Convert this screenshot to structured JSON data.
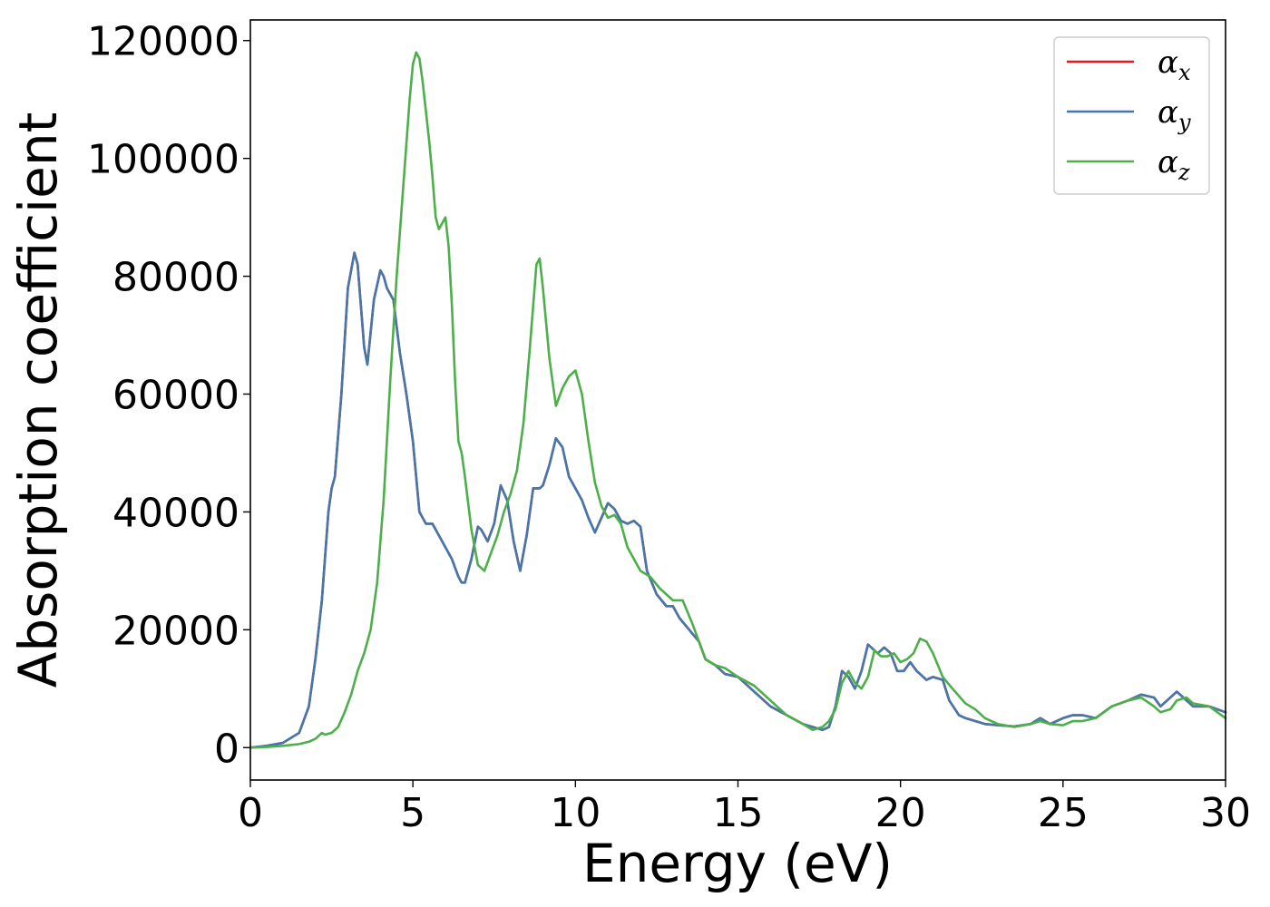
{
  "chart_data": {
    "type": "line",
    "xlabel": "Energy (eV)",
    "ylabel": "Absorption coefficient",
    "xlim": [
      0,
      30
    ],
    "ylim": [
      -5500,
      123500
    ],
    "xticks": [
      0,
      5,
      10,
      15,
      20,
      25,
      30
    ],
    "xtick_labels": [
      "0",
      "5",
      "10",
      "15",
      "20",
      "25",
      "30"
    ],
    "yticks": [
      0,
      20000,
      40000,
      60000,
      80000,
      100000,
      120000
    ],
    "ytick_labels": [
      "0",
      "20000",
      "40000",
      "60000",
      "80000",
      "100000",
      "120000"
    ],
    "grid": false,
    "legend_position": "top-right",
    "series": [
      {
        "name": "α_x",
        "name_base": "α",
        "name_sub": "x",
        "color": "#e41a1c",
        "x": [
          0,
          0.5,
          1.0,
          1.5,
          1.8,
          2.0,
          2.2,
          2.4,
          2.5,
          2.6,
          2.8,
          3.0,
          3.2,
          3.3,
          3.5,
          3.6,
          3.8,
          4.0,
          4.1,
          4.2,
          4.4,
          4.6,
          4.8,
          5.0,
          5.2,
          5.4,
          5.6,
          5.8,
          6.0,
          6.2,
          6.4,
          6.5,
          6.6,
          6.8,
          7.0,
          7.1,
          7.3,
          7.5,
          7.7,
          7.9,
          8.1,
          8.3,
          8.5,
          8.7,
          8.9,
          9.0,
          9.2,
          9.4,
          9.6,
          9.8,
          10.0,
          10.2,
          10.4,
          10.6,
          10.8,
          11.0,
          11.2,
          11.4,
          11.6,
          11.8,
          12.0,
          12.2,
          12.5,
          12.8,
          13.0,
          13.2,
          13.5,
          13.8,
          14.0,
          14.3,
          14.6,
          15.0,
          15.5,
          16.0,
          16.5,
          17.0,
          17.3,
          17.6,
          17.8,
          18.0,
          18.2,
          18.4,
          18.6,
          18.8,
          19.0,
          19.1,
          19.3,
          19.5,
          19.7,
          19.9,
          20.1,
          20.3,
          20.5,
          20.8,
          21.0,
          21.3,
          21.5,
          21.8,
          22.0,
          22.3,
          22.6,
          23.0,
          23.5,
          24.0,
          24.3,
          24.6,
          25.0,
          25.3,
          25.6,
          26.0,
          26.5,
          27.0,
          27.4,
          27.8,
          28.0,
          28.3,
          28.5,
          28.8,
          29.0,
          29.5,
          30.0
        ],
        "y": [
          0,
          300,
          800,
          2500,
          7000,
          15000,
          25000,
          40000,
          44000,
          46000,
          60000,
          78000,
          84000,
          82000,
          68000,
          65000,
          76000,
          81000,
          80000,
          78000,
          76000,
          67000,
          60000,
          52000,
          40000,
          38000,
          38000,
          36000,
          34000,
          32000,
          29000,
          28000,
          28000,
          32000,
          37500,
          37000,
          35000,
          38000,
          44500,
          42000,
          35000,
          30000,
          36000,
          44000,
          44000,
          44500,
          48000,
          52500,
          51000,
          46000,
          44000,
          42000,
          39000,
          36500,
          39000,
          41500,
          40500,
          38500,
          38000,
          38500,
          37500,
          30000,
          26000,
          24000,
          24000,
          22000,
          20000,
          18000,
          15000,
          14000,
          12500,
          12000,
          9500,
          7000,
          5500,
          4000,
          3500,
          3000,
          3500,
          7000,
          13000,
          12000,
          10000,
          13000,
          17500,
          17000,
          16000,
          17000,
          16000,
          13000,
          13000,
          14500,
          13000,
          11500,
          12000,
          11500,
          8000,
          5500,
          5000,
          4500,
          4000,
          3800,
          3600,
          4000,
          5000,
          4000,
          5000,
          5500,
          5500,
          5000,
          7000,
          8000,
          9000,
          8500,
          7000,
          8500,
          9500,
          8000,
          7000,
          7000,
          6000
        ]
      },
      {
        "name": "α_y",
        "name_base": "α",
        "name_sub": "y",
        "color": "#4477aa",
        "x": [
          0,
          0.5,
          1.0,
          1.5,
          1.8,
          2.0,
          2.2,
          2.4,
          2.5,
          2.6,
          2.8,
          3.0,
          3.2,
          3.3,
          3.5,
          3.6,
          3.8,
          4.0,
          4.1,
          4.2,
          4.4,
          4.6,
          4.8,
          5.0,
          5.2,
          5.4,
          5.6,
          5.8,
          6.0,
          6.2,
          6.4,
          6.5,
          6.6,
          6.8,
          7.0,
          7.1,
          7.3,
          7.5,
          7.7,
          7.9,
          8.1,
          8.3,
          8.5,
          8.7,
          8.9,
          9.0,
          9.2,
          9.4,
          9.6,
          9.8,
          10.0,
          10.2,
          10.4,
          10.6,
          10.8,
          11.0,
          11.2,
          11.4,
          11.6,
          11.8,
          12.0,
          12.2,
          12.5,
          12.8,
          13.0,
          13.2,
          13.5,
          13.8,
          14.0,
          14.3,
          14.6,
          15.0,
          15.5,
          16.0,
          16.5,
          17.0,
          17.3,
          17.6,
          17.8,
          18.0,
          18.2,
          18.4,
          18.6,
          18.8,
          19.0,
          19.1,
          19.3,
          19.5,
          19.7,
          19.9,
          20.1,
          20.3,
          20.5,
          20.8,
          21.0,
          21.3,
          21.5,
          21.8,
          22.0,
          22.3,
          22.6,
          23.0,
          23.5,
          24.0,
          24.3,
          24.6,
          25.0,
          25.3,
          25.6,
          26.0,
          26.5,
          27.0,
          27.4,
          27.8,
          28.0,
          28.3,
          28.5,
          28.8,
          29.0,
          29.5,
          30.0
        ],
        "y": [
          0,
          300,
          800,
          2500,
          7000,
          15000,
          25000,
          40000,
          44000,
          46000,
          60000,
          78000,
          84000,
          82000,
          68000,
          65000,
          76000,
          81000,
          80000,
          78000,
          76000,
          67000,
          60000,
          52000,
          40000,
          38000,
          38000,
          36000,
          34000,
          32000,
          29000,
          28000,
          28000,
          32000,
          37500,
          37000,
          35000,
          38000,
          44500,
          42000,
          35000,
          30000,
          36000,
          44000,
          44000,
          44500,
          48000,
          52500,
          51000,
          46000,
          44000,
          42000,
          39000,
          36500,
          39000,
          41500,
          40500,
          38500,
          38000,
          38500,
          37500,
          30000,
          26000,
          24000,
          24000,
          22000,
          20000,
          18000,
          15000,
          14000,
          12500,
          12000,
          9500,
          7000,
          5500,
          4000,
          3500,
          3000,
          3500,
          7000,
          13000,
          12000,
          10000,
          13000,
          17500,
          17000,
          16000,
          17000,
          16000,
          13000,
          13000,
          14500,
          13000,
          11500,
          12000,
          11500,
          8000,
          5500,
          5000,
          4500,
          4000,
          3800,
          3600,
          4000,
          5000,
          4000,
          5000,
          5500,
          5500,
          5000,
          7000,
          8000,
          9000,
          8500,
          7000,
          8500,
          9500,
          8000,
          7000,
          7000,
          6000
        ]
      },
      {
        "name": "α_z",
        "name_base": "α",
        "name_sub": "z",
        "color": "#4daf4a",
        "x": [
          0,
          0.5,
          1.0,
          1.5,
          1.8,
          2.0,
          2.2,
          2.3,
          2.5,
          2.7,
          2.9,
          3.1,
          3.3,
          3.5,
          3.7,
          3.9,
          4.1,
          4.3,
          4.5,
          4.7,
          4.9,
          5.0,
          5.1,
          5.2,
          5.3,
          5.4,
          5.5,
          5.6,
          5.7,
          5.8,
          5.9,
          6.0,
          6.1,
          6.2,
          6.3,
          6.4,
          6.5,
          6.6,
          6.8,
          7.0,
          7.2,
          7.4,
          7.6,
          7.8,
          8.0,
          8.2,
          8.4,
          8.6,
          8.8,
          8.9,
          9.0,
          9.2,
          9.4,
          9.6,
          9.8,
          10.0,
          10.2,
          10.4,
          10.6,
          10.8,
          11.0,
          11.2,
          11.4,
          11.6,
          11.8,
          12.0,
          12.3,
          12.6,
          13.0,
          13.3,
          13.6,
          14.0,
          14.3,
          14.6,
          15.0,
          15.5,
          16.0,
          16.5,
          17.0,
          17.3,
          17.6,
          17.8,
          18.0,
          18.2,
          18.4,
          18.6,
          18.8,
          19.0,
          19.2,
          19.4,
          19.6,
          19.8,
          20.0,
          20.2,
          20.4,
          20.6,
          20.8,
          21.0,
          21.3,
          21.6,
          22.0,
          22.3,
          22.6,
          23.0,
          23.5,
          24.0,
          24.3,
          24.6,
          25.0,
          25.3,
          25.6,
          26.0,
          26.5,
          27.0,
          27.4,
          27.8,
          28.0,
          28.3,
          28.5,
          28.8,
          29.0,
          29.5,
          30.0
        ],
        "y": [
          0,
          100,
          300,
          600,
          1000,
          1500,
          2500,
          2200,
          2500,
          3500,
          6000,
          9000,
          13000,
          16000,
          20000,
          28000,
          42000,
          62000,
          80000,
          95000,
          110000,
          116000,
          118000,
          117000,
          113000,
          108000,
          103000,
          97000,
          90000,
          88000,
          89000,
          90000,
          85000,
          75000,
          62000,
          52000,
          50000,
          46000,
          37000,
          31000,
          30000,
          33000,
          36000,
          40000,
          43000,
          47000,
          55000,
          68000,
          82000,
          83000,
          78000,
          66000,
          58000,
          61000,
          63000,
          64000,
          60000,
          52000,
          45000,
          41000,
          39000,
          39500,
          38000,
          34000,
          32000,
          30000,
          29000,
          27000,
          25000,
          25000,
          21000,
          15000,
          14000,
          13500,
          12000,
          10500,
          8000,
          5500,
          4000,
          3000,
          3500,
          4500,
          6500,
          11000,
          13000,
          11000,
          10000,
          12000,
          16500,
          15500,
          15500,
          16000,
          14500,
          15000,
          16000,
          18500,
          18000,
          16000,
          12000,
          10000,
          7500,
          6500,
          5000,
          4000,
          3500,
          4000,
          4500,
          4000,
          3800,
          4500,
          4500,
          5000,
          7000,
          8000,
          8500,
          7000,
          6000,
          6500,
          8000,
          8500,
          7500,
          7000,
          5000
        ]
      }
    ]
  }
}
